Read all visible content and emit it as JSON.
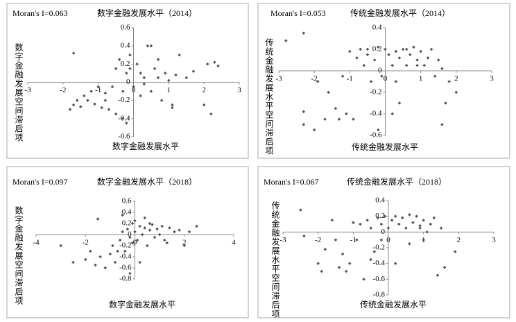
{
  "chart_data": [
    {
      "type": "scatter",
      "title": "Moran's I=0.063",
      "subtitle": "数字金融发展水平（2014）",
      "x_label": "数字金融发展水平",
      "y_label": "数字金融发展空间滞后项",
      "color": "#555555",
      "xlim": [
        -3,
        3
      ],
      "xticks": [
        -3,
        -2,
        -1,
        0,
        1,
        2,
        3
      ],
      "ylim": [
        -0.6,
        0.6
      ],
      "yticks": [
        -0.6,
        -0.4,
        -0.2,
        0,
        0.2,
        0.4,
        0.6
      ],
      "x": [
        -1.7,
        -1.8,
        -1.7,
        -1.6,
        -1.5,
        -1.4,
        -1.3,
        -1.2,
        -1.1,
        -1.0,
        -0.9,
        -0.8,
        -0.7,
        -0.6,
        -0.5,
        -0.4,
        -0.3,
        -0.2,
        -0.1,
        0,
        0.1,
        0.2,
        0.3,
        0.4,
        0.5,
        0.6,
        0.7,
        0.8,
        0.9,
        1.0,
        1.1,
        1.2,
        1.3,
        1.5,
        1.7,
        2.0,
        2.1,
        2.2,
        2.3,
        2.4,
        -0.2,
        -0.3,
        0.5,
        -0.5,
        0.2,
        -0.8,
        0.3,
        1.1,
        -0.1,
        0.7
      ],
      "values": [
        0.32,
        -0.3,
        -0.25,
        -0.2,
        -0.27,
        -0.15,
        -0.2,
        -0.1,
        -0.24,
        -0.05,
        -0.28,
        -0.12,
        -0.3,
        -0.05,
        -0.35,
        0.25,
        -0.1,
        0.1,
        0.3,
        -0.05,
        0.2,
        -0.15,
        0.05,
        0.4,
        -0.1,
        0.15,
        0.05,
        -0.2,
        0.1,
        0.02,
        -0.25,
        0.08,
        0.3,
        0.05,
        0.12,
        -0.25,
        0.2,
        -0.35,
        0.22,
        0.18,
        -0.45,
        -0.4,
        0.4,
        0.15,
        0.1,
        -0.2,
        -0.02,
        -0.28,
        0.15,
        0.25
      ]
    },
    {
      "type": "scatter",
      "title": "Moran's I=0.053",
      "subtitle": "传统金融发展水平（2014）",
      "x_label": "传统金融发展水平",
      "y_label": "传统金融发展水平空间滞后项",
      "color": "#555555",
      "xlim": [
        -3,
        3
      ],
      "xticks": [
        -3,
        -2,
        -1,
        0,
        1,
        2,
        3
      ],
      "ylim": [
        -0.6,
        0.4
      ],
      "yticks": [
        -0.6,
        -0.4,
        -0.2,
        0,
        0.2,
        0.4
      ],
      "x": [
        -2.8,
        -2.3,
        -2.3,
        -2.3,
        -2.0,
        -1.7,
        -1.6,
        -1.4,
        -1.2,
        -1.1,
        -1.0,
        -0.9,
        -0.8,
        -0.7,
        -0.6,
        -0.5,
        -0.4,
        -0.3,
        -0.2,
        -0.1,
        0,
        0.1,
        0.2,
        0.2,
        0.3,
        0.4,
        0.5,
        0.6,
        0.7,
        0.8,
        0.9,
        1.0,
        1.1,
        1.2,
        1.3,
        1.4,
        1.5,
        1.6,
        1.7,
        1.8,
        2.0,
        -0.5,
        0.3,
        -1.9,
        0.9,
        -0.2,
        1.6,
        0.6,
        -1.3,
        0.4
      ],
      "values": [
        0.28,
        0.35,
        -0.38,
        -0.5,
        -0.55,
        -0.45,
        -0.2,
        -0.35,
        -0.05,
        -0.4,
        0.18,
        -0.45,
        0.12,
        0.2,
        0.05,
        0.15,
        -0.1,
        0.1,
        0.22,
        -0.05,
        0.2,
        0.15,
        0.05,
        -0.4,
        0.18,
        0.12,
        0.2,
        0.05,
        0.15,
        0.22,
        0.1,
        0.18,
        0.05,
        0.12,
        0.2,
        -0.05,
        0.1,
        -0.5,
        -0.3,
        -0.1,
        -0.2,
        0.2,
        -0.1,
        -0.1,
        0.05,
        -0.55,
        0.02,
        0.2,
        -0.45,
        -0.3
      ]
    },
    {
      "type": "scatter",
      "title": "Moran's I=0.097",
      "subtitle": "数字金融发展水平（2018）",
      "x_label": "数字金融发展水平",
      "y_label": "数字金融发展空间滞后项",
      "color": "#555555",
      "xlim": [
        -4,
        4
      ],
      "xticks": [
        -4,
        -2,
        0,
        2,
        4
      ],
      "ylim": [
        -0.8,
        0.6
      ],
      "yticks": [
        -0.8,
        -0.6,
        -0.4,
        -0.2,
        0,
        0.2,
        0.4,
        0.6
      ],
      "x": [
        -3.0,
        -2.5,
        -2.0,
        -1.8,
        -1.6,
        -1.4,
        -1.2,
        -1.0,
        -0.9,
        -0.8,
        -0.6,
        -0.5,
        -0.4,
        -0.3,
        -0.2,
        -0.1,
        0,
        0.1,
        0.2,
        0.3,
        0.4,
        0.5,
        0.6,
        0.7,
        0.8,
        0.9,
        1.0,
        1.1,
        1.2,
        1.4,
        1.6,
        1.8,
        2.0,
        2.2,
        2.5,
        -1.5,
        -0.5,
        -0.2,
        0.2,
        0.4,
        -0.7,
        0.0,
        1.3,
        -0.1,
        0.6
      ],
      "values": [
        -0.2,
        -0.5,
        -0.45,
        -0.3,
        -0.55,
        -0.4,
        -0.6,
        -0.35,
        -0.2,
        -0.5,
        -0.1,
        0.05,
        -0.3,
        0.1,
        -0.05,
        0.2,
        0.05,
        -0.1,
        0.15,
        0.0,
        0.12,
        -0.2,
        0.08,
        0.18,
        -0.05,
        0.1,
        0.0,
        0.15,
        -0.1,
        0.12,
        0.05,
        0.08,
        -0.2,
        0.05,
        0.15,
        0.28,
        0.35,
        -0.7,
        -0.5,
        0.3,
        -0.3,
        0.25,
        -0.15,
        -0.15,
        0.2
      ]
    },
    {
      "type": "scatter",
      "title": "Moran's I=0.067",
      "subtitle": "传统金融发展水平（2018）",
      "x_label": "传统金融发展水平",
      "y_label": "传统金融发展水平空间滞后项",
      "color": "#555555",
      "xlim": [
        -3,
        3
      ],
      "xticks": [
        -3,
        -2,
        -1,
        0,
        1,
        2,
        3
      ],
      "ylim": [
        -0.8,
        0.4
      ],
      "yticks": [
        -0.8,
        -0.6,
        -0.4,
        -0.2,
        0,
        0.2,
        0.4
      ],
      "x": [
        -2.5,
        -2.4,
        -2.0,
        -1.9,
        -1.8,
        -1.5,
        -1.4,
        -1.3,
        -1.1,
        -1.0,
        -0.9,
        -0.8,
        -0.7,
        -0.6,
        -0.5,
        -0.4,
        -0.3,
        -0.2,
        -0.1,
        0,
        0.1,
        0.2,
        0.3,
        0.4,
        0.5,
        0.6,
        0.7,
        0.8,
        0.9,
        1.0,
        1.1,
        1.2,
        1.3,
        1.4,
        1.5,
        1.6,
        1.9,
        -1.6,
        0.6,
        -0.5,
        1.0,
        0.2,
        -1.2,
        0.9,
        -0.2
      ],
      "values": [
        0.28,
        -0.05,
        -0.4,
        -0.5,
        -0.22,
        -0.1,
        -0.45,
        -0.28,
        -0.4,
        0.12,
        -0.1,
        0.1,
        -0.6,
        0.15,
        0.05,
        -0.25,
        0.18,
        0.1,
        0.2,
        0.05,
        0.15,
        -0.4,
        0.1,
        0.18,
        0.05,
        -0.15,
        0.12,
        0.2,
        0.08,
        0.15,
        0.0,
        0.1,
        0.18,
        -0.55,
        0.05,
        -0.45,
        -0.25,
        0.15,
        0.22,
        -0.35,
        -0.1,
        0.2,
        -0.5,
        0.05,
        -0.1
      ]
    }
  ]
}
